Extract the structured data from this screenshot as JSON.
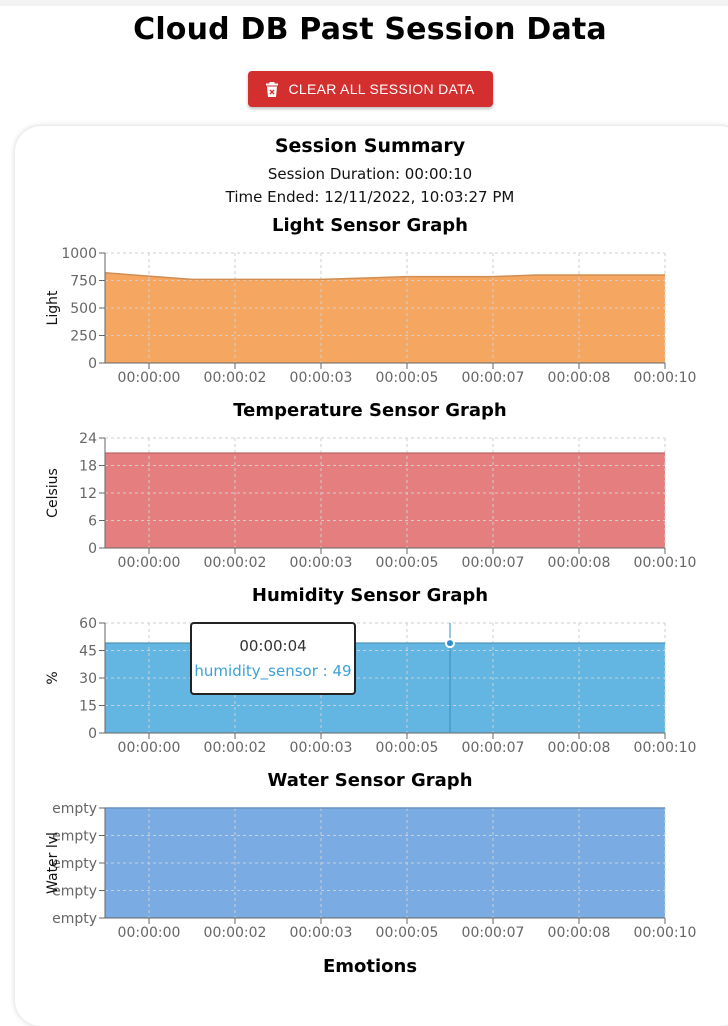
{
  "page": {
    "title": "Cloud DB Past Session Data",
    "clear_button_label": "CLEAR ALL SESSION DATA",
    "clear_button_icon": "trash-icon"
  },
  "summary": {
    "title": "Session Summary",
    "duration": "Session Duration: 00:00:10",
    "time_ended": "Time Ended: 12/11/2022, 10:03:27 PM"
  },
  "tooltip": {
    "label": "00:00:04",
    "value": "humidity_sensor : 49"
  },
  "emotions_title": "Emotions",
  "chart_data": [
    {
      "type": "area",
      "title": "Light Sensor Graph",
      "xlabel": "",
      "ylabel": "Light",
      "x": [
        "00:00:00",
        "00:00:02",
        "00:00:03",
        "00:00:05",
        "00:00:07",
        "00:00:08",
        "00:00:10"
      ],
      "ylim": [
        0,
        1000
      ],
      "yticks": [
        "0",
        "250",
        "500",
        "750",
        "1000"
      ],
      "series": [
        {
          "name": "",
          "color": "#f5a762",
          "points": [
            [
              0,
              820
            ],
            [
              0.5,
              760
            ],
            [
              2,
              760
            ],
            [
              3,
              785
            ],
            [
              4,
              785
            ],
            [
              4.5,
              800
            ],
            [
              5,
              800
            ],
            [
              6,
              800
            ]
          ]
        }
      ],
      "grid": true
    },
    {
      "type": "area",
      "title": "Temperature Sensor Graph",
      "xlabel": "",
      "ylabel": "Celsius",
      "x": [
        "00:00:00",
        "00:00:02",
        "00:00:03",
        "00:00:05",
        "00:00:07",
        "00:00:08",
        "00:00:10"
      ],
      "ylim": [
        0,
        24
      ],
      "yticks": [
        "0",
        "6",
        "12",
        "18",
        "24"
      ],
      "series": [
        {
          "name": "",
          "color": "#e57f7f",
          "points": [
            [
              0,
              20.7
            ],
            [
              6,
              20.7
            ]
          ]
        }
      ],
      "grid": true
    },
    {
      "type": "area",
      "title": "Humidity Sensor Graph",
      "xlabel": "",
      "ylabel": "%",
      "x": [
        "00:00:00",
        "00:00:02",
        "00:00:03",
        "00:00:05",
        "00:00:07",
        "00:00:08",
        "00:00:10"
      ],
      "ylim": [
        0,
        60
      ],
      "yticks": [
        "0",
        "15",
        "30",
        "45",
        "60"
      ],
      "series": [
        {
          "name": "humidity_sensor",
          "color": "#63b6e2",
          "points": [
            [
              0,
              49
            ],
            [
              6,
              49
            ]
          ]
        }
      ],
      "grid": true,
      "active_point": {
        "x": 3.0,
        "y": 49
      }
    },
    {
      "type": "area",
      "title": "Water Sensor Graph",
      "xlabel": "",
      "ylabel": "Water lvl",
      "x": [
        "00:00:00",
        "00:00:02",
        "00:00:03",
        "00:00:05",
        "00:00:07",
        "00:00:08",
        "00:00:10"
      ],
      "ylim": [
        0,
        4
      ],
      "yticks": [
        "empty",
        "empty",
        "empty",
        "empty",
        "empty"
      ],
      "series": [
        {
          "name": "",
          "color": "#7aabe3",
          "points": [
            [
              0,
              4
            ],
            [
              6,
              4
            ]
          ]
        }
      ],
      "grid": true
    }
  ]
}
